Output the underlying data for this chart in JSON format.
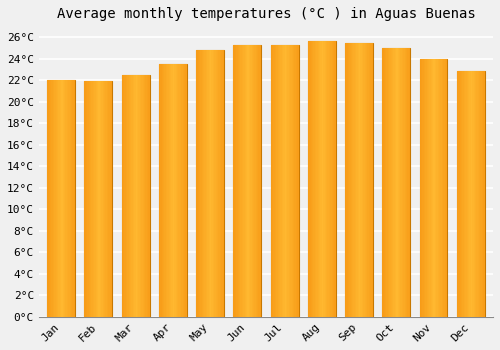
{
  "title": "Average monthly temperatures (°C ) in Aguas Buenas",
  "months": [
    "Jan",
    "Feb",
    "Mar",
    "Apr",
    "May",
    "Jun",
    "Jul",
    "Aug",
    "Sep",
    "Oct",
    "Nov",
    "Dec"
  ],
  "temperatures": [
    22.0,
    21.9,
    22.5,
    23.5,
    24.8,
    25.3,
    25.3,
    25.6,
    25.4,
    25.0,
    24.0,
    22.8
  ],
  "bar_color_light": "#FFB830",
  "bar_color_dark": "#F08000",
  "bar_edge_color": "#C87800",
  "ylim": [
    0,
    27
  ],
  "yticks": [
    0,
    2,
    4,
    6,
    8,
    10,
    12,
    14,
    16,
    18,
    20,
    22,
    24,
    26
  ],
  "background_color": "#F0F0F0",
  "plot_bg_color": "#F0F0F0",
  "grid_color": "#FFFFFF",
  "title_fontsize": 10,
  "tick_fontsize": 8,
  "font_family": "monospace"
}
